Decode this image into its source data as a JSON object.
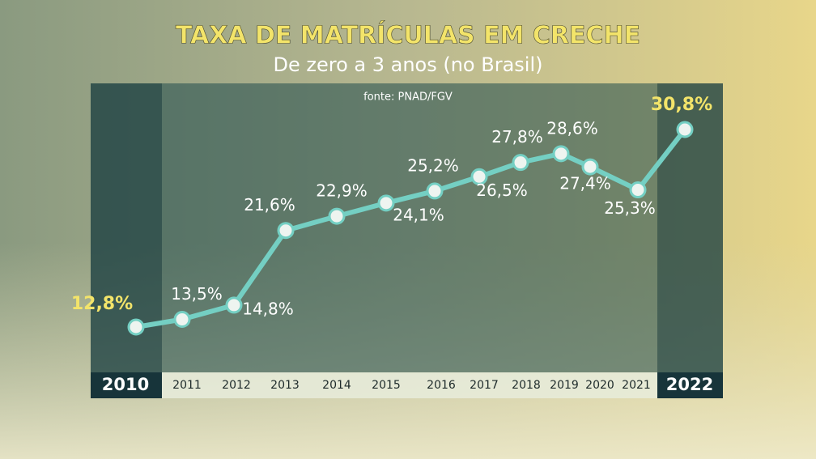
{
  "chart_data": {
    "type": "line",
    "title": "TAXA DE MATRÍCULAS EM CRECHE",
    "subtitle": "De zero a 3 anos (no Brasil)",
    "source": "fonte: PNAD/FGV",
    "categories": [
      "2010",
      "2011",
      "2012",
      "2013",
      "2014",
      "2015",
      "2016",
      "2017",
      "2018",
      "2019",
      "2020",
      "2021",
      "2022"
    ],
    "values": [
      12.8,
      13.5,
      14.8,
      21.6,
      22.9,
      24.1,
      25.2,
      26.5,
      27.8,
      28.6,
      27.4,
      25.3,
      30.8
    ],
    "value_labels": [
      "12,8%",
      "13,5%",
      "14,8%",
      "21,6%",
      "22,9%",
      "24,1%",
      "25,2%",
      "26,5%",
      "27,8%",
      "28,6%",
      "27,4%",
      "25,3%",
      "30,8%"
    ],
    "color": "#74cfc3",
    "highlight_color": "#f3e46a"
  }
}
